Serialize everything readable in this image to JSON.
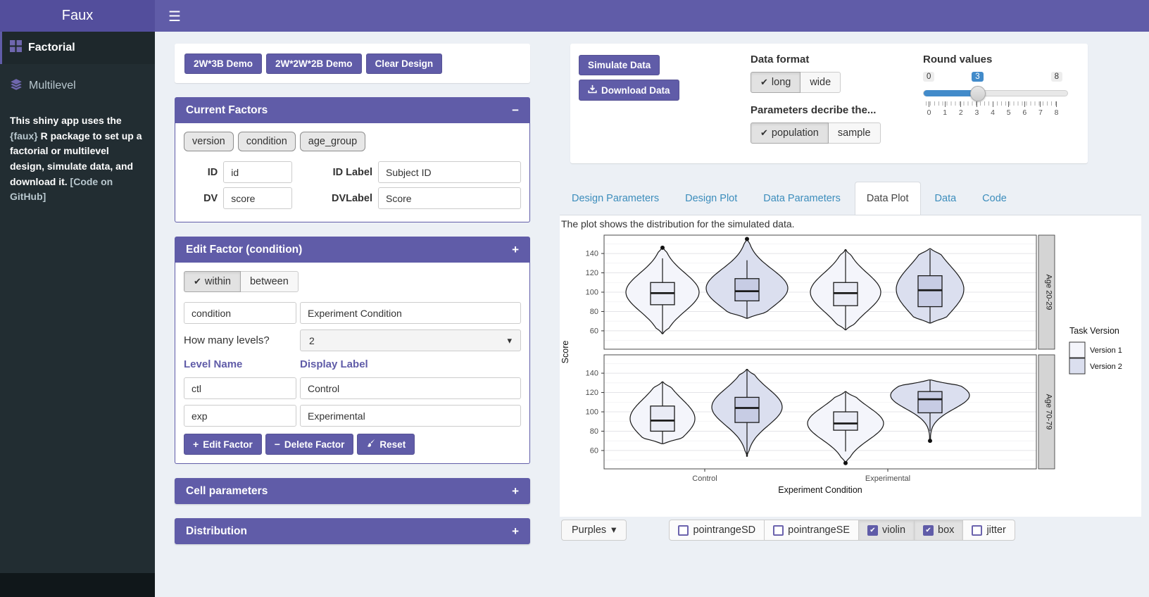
{
  "icons": {
    "check": "✔",
    "plus": "+",
    "minus": "−",
    "caret": "▾",
    "hamburger": "☰"
  },
  "app": {
    "title": "Faux"
  },
  "sidebar": {
    "items": [
      {
        "label": "Factorial"
      },
      {
        "label": "Multilevel"
      }
    ],
    "description": {
      "pre": "This shiny app uses the ",
      "pkg": "{faux}",
      "mid": " R package to set up a factorial or multilevel design, simulate data, and download it. ",
      "link": "[Code on GitHub]"
    }
  },
  "left": {
    "demo_buttons": [
      "2W*3B Demo",
      "2W*2W*2B Demo",
      "Clear Design"
    ],
    "current_factors": {
      "title": "Current Factors",
      "collapse_icon": "−",
      "chips": [
        "version",
        "condition",
        "age_group"
      ],
      "id_label": "ID",
      "id_value": "id",
      "idlabel_label": "ID Label",
      "idlabel_value": "Subject ID",
      "dv_label": "DV",
      "dv_value": "score",
      "dvlabel_label": "DVLabel",
      "dvlabel_value": "Score"
    },
    "edit_factor": {
      "title": "Edit Factor (condition)",
      "collapse_icon": "+",
      "toggle": [
        {
          "label": "within",
          "checked": true
        },
        {
          "label": "between",
          "checked": false
        }
      ],
      "name_value": "condition",
      "display_value": "Experiment Condition",
      "levels_question": "How many levels?",
      "levels_value": "2",
      "col_level": "Level Name",
      "col_display": "Display Label",
      "levels": [
        {
          "name": "ctl",
          "label": "Control"
        },
        {
          "name": "exp",
          "label": "Experimental"
        }
      ],
      "buttons": [
        {
          "label": "Edit Factor"
        },
        {
          "label": "Delete Factor"
        },
        {
          "label": "Reset"
        }
      ]
    },
    "collapsed_panels": [
      {
        "title": "Cell parameters",
        "icon": "+"
      },
      {
        "title": "Distribution",
        "icon": "+"
      }
    ]
  },
  "right": {
    "simulate_button": "Simulate Data",
    "download_button": "Download Data",
    "data_format": {
      "label": "Data format",
      "options": [
        {
          "label": "long",
          "checked": true
        },
        {
          "label": "wide",
          "checked": false
        }
      ]
    },
    "parameters": {
      "label": "Parameters decribe the...",
      "options": [
        {
          "label": "population",
          "checked": true
        },
        {
          "label": "sample",
          "checked": false
        }
      ]
    },
    "round_values": {
      "label": "Round values",
      "min": "0",
      "max": "8",
      "value": "3",
      "ticks": [
        "0",
        "1",
        "2",
        "3",
        "4",
        "5",
        "6",
        "7",
        "8"
      ]
    },
    "tabs": [
      {
        "label": "Design Parameters",
        "active": false
      },
      {
        "label": "Design Plot",
        "active": false
      },
      {
        "label": "Data Parameters",
        "active": false
      },
      {
        "label": "Data Plot",
        "active": true
      },
      {
        "label": "Data",
        "active": false
      },
      {
        "label": "Code",
        "active": false
      }
    ],
    "caption": "The plot shows the distribution for the simulated data.",
    "plot_controls": {
      "palette": "Purples",
      "checkboxes": [
        {
          "label": "pointrangeSD",
          "checked": false
        },
        {
          "label": "pointrangeSE",
          "checked": false
        },
        {
          "label": "violin",
          "checked": true
        },
        {
          "label": "box",
          "checked": true
        },
        {
          "label": "jitter",
          "checked": false
        }
      ]
    }
  },
  "chart_data": {
    "type": "violin",
    "x_axis_title": "Experiment Condition",
    "y_axis_title": "Score",
    "x_categories": [
      "Control",
      "Experimental"
    ],
    "y_ticks": [
      60,
      80,
      100,
      120,
      140
    ],
    "y_domain": [
      41,
      159
    ],
    "grid": true,
    "colors": {
      "violin": [
        "#f4f5fb",
        "#dbdfef"
      ],
      "box": [
        "#e9ebf5",
        "#c7cce4"
      ],
      "stroke": "#1a1a1a"
    },
    "legend": {
      "title": "Task Version",
      "position": "right",
      "entries": [
        {
          "label": "Version 1",
          "fill": "#f4f5fb"
        },
        {
          "label": "Version 2",
          "fill": "#dbdfef"
        }
      ]
    },
    "facets": [
      {
        "label": "Age 20-29",
        "violins": [
          {
            "group": "Control",
            "version": 1,
            "min": 57,
            "max": 147,
            "q1": 87,
            "median": 99,
            "q3": 110,
            "whisker_low": 57,
            "whisker_high": 135,
            "outliers": [
              146
            ],
            "mode": 100,
            "bw": 20,
            "maxw": 52
          },
          {
            "group": "Control",
            "version": 2,
            "min": 73,
            "max": 156,
            "q1": 91,
            "median": 101,
            "q3": 114,
            "whisker_low": 73,
            "whisker_high": 133,
            "outliers": [
              155
            ],
            "mode": 104,
            "bw": 20,
            "maxw": 58
          },
          {
            "group": "Experimental",
            "version": 1,
            "min": 61,
            "max": 144,
            "q1": 86,
            "median": 99,
            "q3": 110,
            "whisker_low": 61,
            "whisker_high": 144,
            "outliers": [],
            "mode": 100,
            "bw": 20,
            "maxw": 50
          },
          {
            "group": "Experimental",
            "version": 2,
            "min": 68,
            "max": 145,
            "q1": 85,
            "median": 102,
            "q3": 117,
            "whisker_low": 68,
            "whisker_high": 144,
            "outliers": [],
            "mode": 103,
            "bw": 24,
            "maxw": 48
          }
        ]
      },
      {
        "label": "Age 70-79",
        "violins": [
          {
            "group": "Control",
            "version": 1,
            "min": 67,
            "max": 131,
            "q1": 80,
            "median": 91,
            "q3": 106,
            "whisker_low": 67,
            "whisker_high": 131,
            "outliers": [],
            "mode": 93,
            "bw": 20,
            "maxw": 46
          },
          {
            "group": "Control",
            "version": 2,
            "min": 54,
            "max": 144,
            "q1": 89,
            "median": 104,
            "q3": 115,
            "whisker_low": 54,
            "whisker_high": 144,
            "outliers": [],
            "mode": 105,
            "bw": 19,
            "maxw": 50
          },
          {
            "group": "Experimental",
            "version": 1,
            "min": 47,
            "max": 121,
            "q1": 81,
            "median": 88,
            "q3": 100,
            "whisker_low": 59,
            "whisker_high": 121,
            "outliers": [
              47
            ],
            "mode": 88,
            "bw": 17,
            "maxw": 54
          },
          {
            "group": "Experimental",
            "version": 2,
            "min": 70,
            "max": 133,
            "q1": 99,
            "median": 113,
            "q3": 121,
            "whisker_low": 80,
            "whisker_high": 133,
            "outliers": [
              70
            ],
            "mode": 117,
            "bw": 14,
            "maxw": 56
          }
        ]
      }
    ]
  }
}
